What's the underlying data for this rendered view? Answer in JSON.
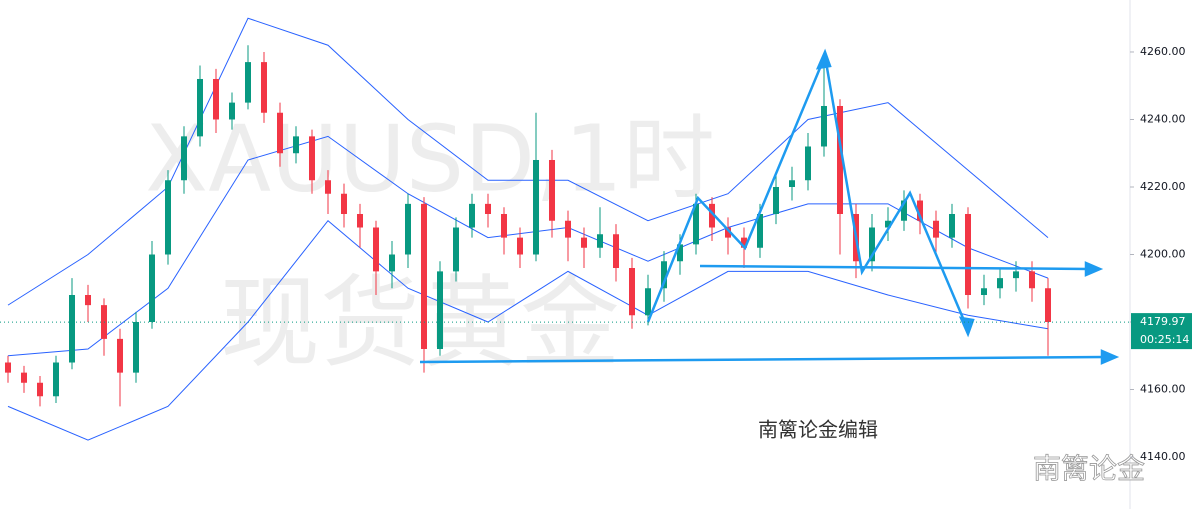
{
  "chart_data": {
    "type": "candlestick",
    "watermark": "XAUUSD,1时",
    "watermark_subtitle": "现货黄金",
    "annotation": "南篱论金编辑",
    "corner_label": "南篱论金",
    "up_color": "#089981",
    "down_color": "#f23645",
    "band_color": "#2962ff",
    "ylim": [
      4124.6,
      4275.4
    ],
    "yticks": [
      {
        "value": 4140,
        "label": "4140.00"
      },
      {
        "value": 4160,
        "label": "4160.00"
      },
      {
        "value": 4180,
        "label": "4180.00"
      },
      {
        "value": 4200,
        "label": "4200.00"
      },
      {
        "value": 4220,
        "label": "4220.00"
      },
      {
        "value": 4240,
        "label": "4240.00"
      },
      {
        "value": 4260,
        "label": "4260.00"
      }
    ],
    "last_price": {
      "value": 4179.97,
      "label": "4179.97"
    },
    "countdown": "00:25:14",
    "open": [
      4168,
      4165,
      4162,
      4158,
      4168,
      4188,
      4185,
      4175,
      4165,
      4180,
      4200,
      4222,
      4235,
      4252,
      4240,
      4245,
      4257,
      4242,
      4230,
      4235,
      4222,
      4218,
      4212,
      4208,
      4195,
      4200,
      4215,
      4172,
      4195,
      4208,
      4215,
      4212,
      4205,
      4200,
      4228,
      4210,
      4205,
      4202,
      4206,
      4196,
      4182,
      4190,
      4198,
      4203,
      4215,
      4208,
      4205,
      4202,
      4212,
      4220,
      4222,
      4232,
      4244,
      4212,
      4198,
      4208,
      4210,
      4216,
      4210,
      4205,
      4212,
      4188,
      4190,
      4193,
      4195,
      4190
    ],
    "high": [
      4170,
      4167,
      4164,
      4170,
      4193,
      4191,
      4187,
      4178,
      4183,
      4204,
      4225,
      4238,
      4256,
      4255,
      4248,
      4262,
      4260,
      4245,
      4238,
      4237,
      4225,
      4221,
      4215,
      4210,
      4204,
      4218,
      4217,
      4198,
      4211,
      4218,
      4218,
      4214,
      4208,
      4242,
      4231,
      4213,
      4208,
      4214,
      4209,
      4199,
      4194,
      4201,
      4206,
      4218,
      4217,
      4211,
      4208,
      4215,
      4224,
      4226,
      4236,
      4258,
      4246,
      4215,
      4212,
      4214,
      4219,
      4218,
      4213,
      4215,
      4214,
      4194,
      4196,
      4198,
      4198,
      4193
    ],
    "low": [
      4162,
      4159,
      4155,
      4156,
      4166,
      4180,
      4170,
      4155,
      4162,
      4178,
      4197,
      4218,
      4232,
      4236,
      4237,
      4243,
      4239,
      4226,
      4227,
      4218,
      4212,
      4208,
      4202,
      4188,
      4190,
      4196,
      4165,
      4170,
      4192,
      4205,
      4208,
      4200,
      4196,
      4198,
      4205,
      4198,
      4196,
      4199,
      4192,
      4178,
      4179,
      4186,
      4194,
      4200,
      4204,
      4200,
      4196,
      4199,
      4209,
      4216,
      4219,
      4229,
      4200,
      4193,
      4195,
      4204,
      4207,
      4206,
      4200,
      4202,
      4184,
      4185,
      4187,
      4189,
      4186,
      4170
    ],
    "close": [
      4165,
      4162,
      4158,
      4168,
      4188,
      4185,
      4175,
      4165,
      4180,
      4200,
      4222,
      4235,
      4252,
      4240,
      4245,
      4257,
      4242,
      4230,
      4235,
      4222,
      4218,
      4212,
      4208,
      4195,
      4200,
      4215,
      4172,
      4195,
      4208,
      4215,
      4212,
      4205,
      4200,
      4228,
      4210,
      4205,
      4202,
      4206,
      4196,
      4182,
      4190,
      4198,
      4203,
      4215,
      4208,
      4205,
      4202,
      4212,
      4220,
      4222,
      4232,
      4244,
      4212,
      4198,
      4208,
      4210,
      4216,
      4210,
      4205,
      4212,
      4188,
      4190,
      4193,
      4195,
      4190,
      4180
    ],
    "bands": {
      "x": [
        0,
        5,
        10,
        15,
        20,
        25,
        30,
        35,
        40,
        45,
        50,
        55,
        60,
        65
      ],
      "upper": [
        4185,
        4200,
        4220,
        4270,
        4262,
        4240,
        4222,
        4222,
        4210,
        4218,
        4240,
        4245,
        4225,
        4205
      ],
      "middle": [
        4170,
        4172,
        4190,
        4228,
        4235,
        4218,
        4205,
        4208,
        4198,
        4208,
        4215,
        4215,
        4202,
        4193
      ],
      "lower": [
        4155,
        4145,
        4155,
        4180,
        4210,
        4190,
        4180,
        4195,
        4182,
        4195,
        4195,
        4188,
        4182,
        4178
      ]
    }
  }
}
